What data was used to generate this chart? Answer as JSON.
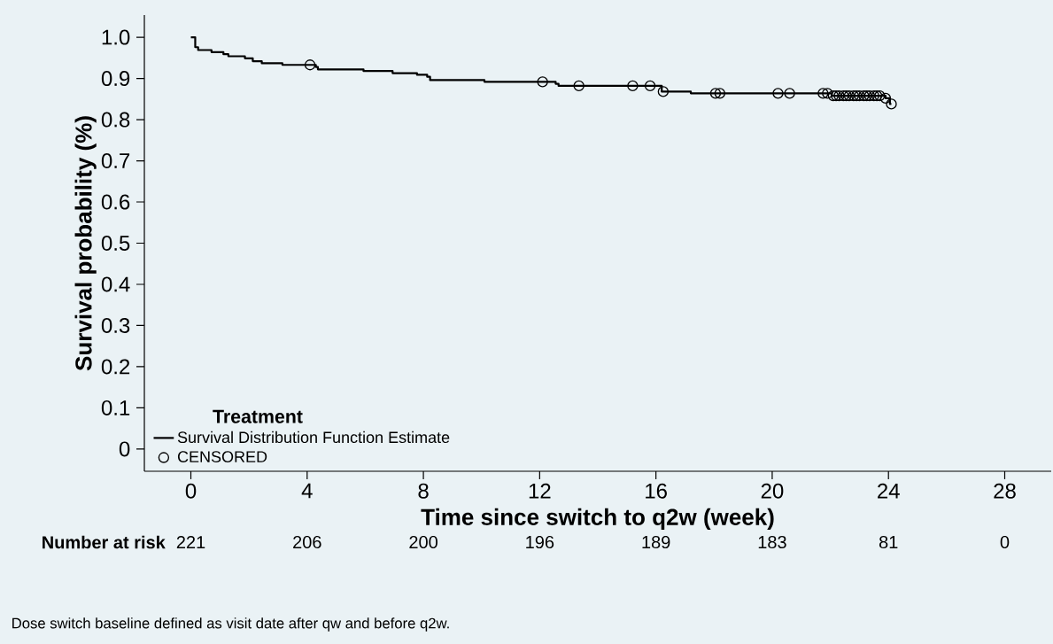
{
  "chart_data": {
    "type": "step",
    "xlabel": "Time since switch to q2w (week)",
    "ylabel": "Survival probability (%)",
    "legend_title": "Treatment",
    "legend": "bottom left",
    "xlim": [
      -1.6,
      29.6
    ],
    "ylim": [
      -0.054,
      1.054
    ],
    "xticks": [
      0,
      4,
      8,
      12,
      16,
      20,
      24,
      28
    ],
    "yticks": [
      0,
      0.1,
      0.2,
      0.3,
      0.4,
      0.5,
      0.6,
      0.7,
      0.8,
      0.9,
      {
        "value": 1,
        "label": "1.0"
      }
    ],
    "series": [
      {
        "name": "Survival Distribution Function Estimate",
        "color": "#000000",
        "marker": "none",
        "x": [
          0,
          0.15,
          0.25,
          0.71,
          1.12,
          1.29,
          1.86,
          2.13,
          2.44,
          3.15,
          4.3,
          4.37,
          5.94,
          6.94,
          7.78,
          8.13,
          8.23,
          10.1,
          12.55,
          12.65,
          16.2,
          17.2,
          22.05,
          23.9,
          24.05,
          24.1
        ],
        "values": [
          1.0,
          0.976,
          0.969,
          0.964,
          0.959,
          0.954,
          0.949,
          0.942,
          0.937,
          0.933,
          0.928,
          0.922,
          0.918,
          0.913,
          0.909,
          0.904,
          0.896,
          0.892,
          0.887,
          0.882,
          0.868,
          0.864,
          0.858,
          0.852,
          0.838,
          0.838
        ]
      },
      {
        "name": "CENSORED",
        "type": "scatter",
        "color": "#000000",
        "marker": "circle",
        "x": [
          4.1,
          12.1,
          13.35,
          15.2,
          15.8,
          16.25,
          18.05,
          18.2,
          20.2,
          20.6,
          21.75,
          21.9,
          22.1,
          22.2,
          22.3,
          22.45,
          22.55,
          22.65,
          22.8,
          22.9,
          23.0,
          23.15,
          23.25,
          23.35,
          23.5,
          23.6,
          23.7,
          23.9,
          24.1
        ],
        "values": [
          0.933,
          0.892,
          0.882,
          0.882,
          0.882,
          0.868,
          0.864,
          0.864,
          0.864,
          0.864,
          0.864,
          0.864,
          0.858,
          0.858,
          0.858,
          0.858,
          0.858,
          0.858,
          0.858,
          0.858,
          0.858,
          0.858,
          0.858,
          0.858,
          0.858,
          0.858,
          0.858,
          0.852,
          0.838
        ]
      }
    ],
    "annotations": [
      "Number at risk",
      "221",
      "206",
      "200",
      "196",
      "189",
      "183",
      "81",
      "0",
      "Dose switch baseline defined as visit date after qw and before q2w."
    ]
  }
}
